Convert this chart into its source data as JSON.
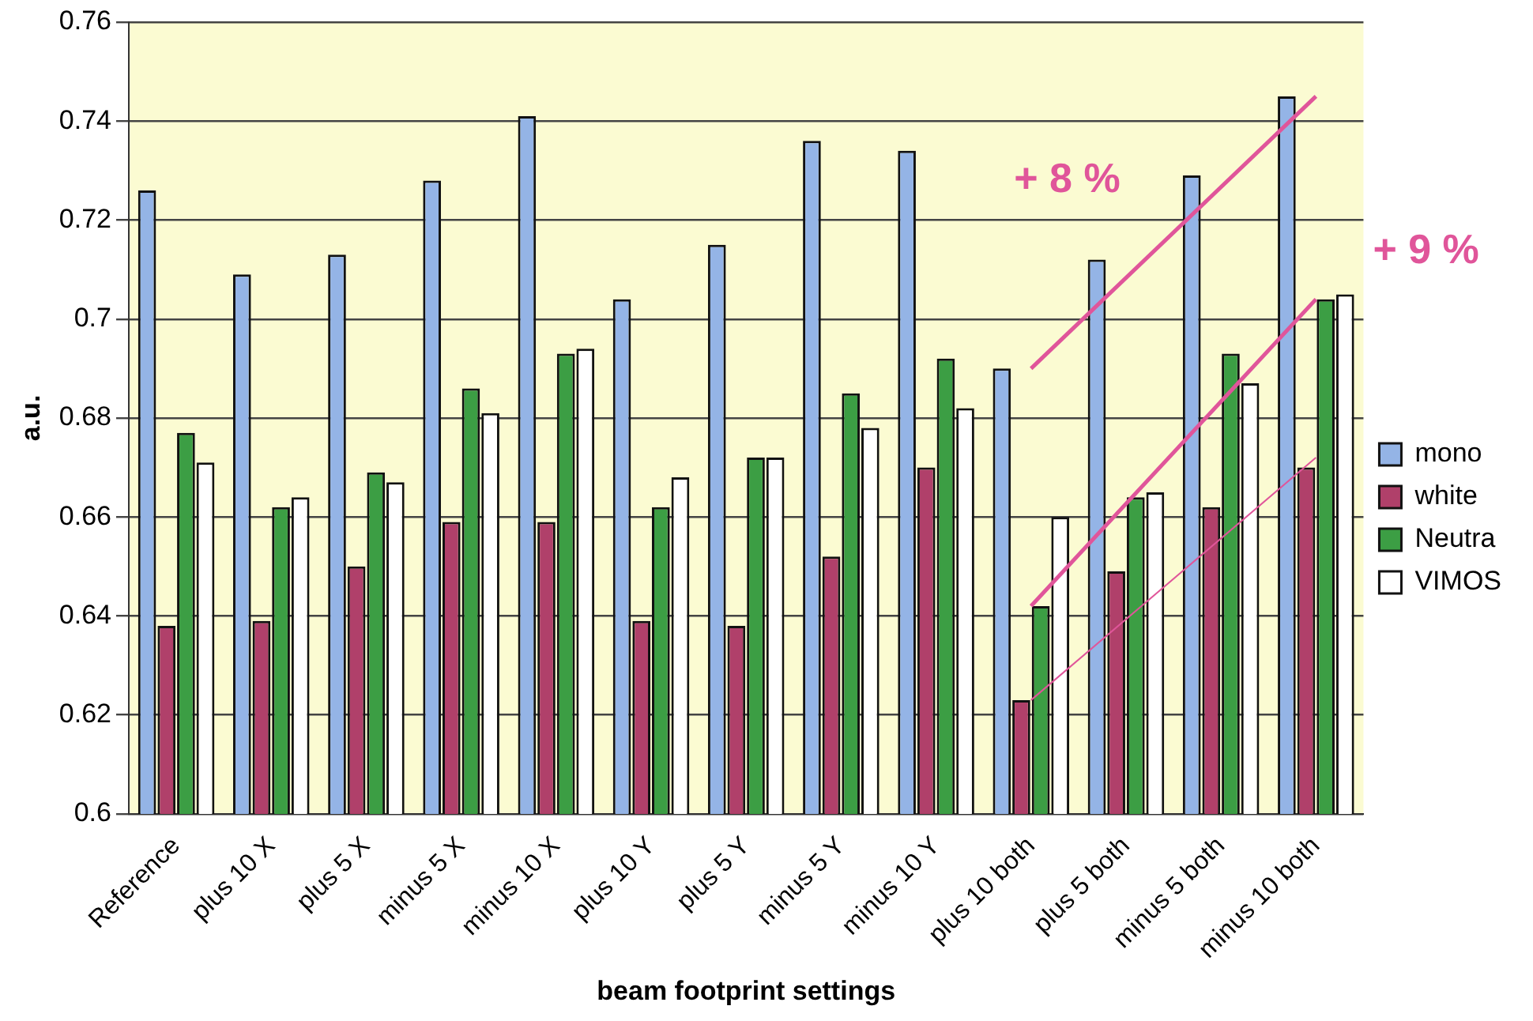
{
  "chart_data": {
    "type": "bar",
    "xlabel": "beam footprint settings",
    "ylabel": "a.u.",
    "categories": [
      "Reference",
      "plus 10 X",
      "plus 5 X",
      "minus 5 X",
      "minus 10 X",
      "plus 10 Y",
      "plus 5 Y",
      "minus 5 Y",
      "minus 10 Y",
      "plus 10 both",
      "plus 5 both",
      "minus 5 both",
      "minus 10 both"
    ],
    "series": [
      {
        "name": "mono",
        "color": "#94b4e6",
        "values": [
          0.726,
          0.709,
          0.713,
          0.728,
          0.741,
          0.704,
          0.715,
          0.736,
          0.734,
          0.69,
          0.712,
          0.729,
          0.745
        ]
      },
      {
        "name": "white",
        "color": "#b0406a",
        "values": [
          0.638,
          0.639,
          0.65,
          0.659,
          0.659,
          0.639,
          0.638,
          0.652,
          0.67,
          0.623,
          0.649,
          0.662,
          0.67
        ]
      },
      {
        "name": "Neutra",
        "color": "#3c9e44",
        "values": [
          0.677,
          0.662,
          0.669,
          0.686,
          0.693,
          0.662,
          0.672,
          0.685,
          0.692,
          0.642,
          0.664,
          0.693,
          0.704
        ]
      },
      {
        "name": "VIMOS",
        "color": "#ffffff",
        "values": [
          0.671,
          0.664,
          0.667,
          0.681,
          0.694,
          0.668,
          0.672,
          0.678,
          0.682,
          0.66,
          0.665,
          0.687,
          0.705
        ]
      },
      {
        "type": "line",
        "color": "#e0559a",
        "x": [
          "plus 10 both",
          "minus 10 both"
        ],
        "values": [
          0.69,
          0.745
        ]
      },
      {
        "type": "line",
        "color": "#e0559a",
        "x": [
          "plus 10 both",
          "minus 10 both"
        ],
        "values": [
          0.642,
          0.704
        ]
      },
      {
        "type": "line",
        "color": "#e0559a",
        "x": [
          "plus 10 both",
          "minus 10 both"
        ],
        "values": [
          0.623,
          0.672
        ]
      }
    ],
    "ylim": [
      0.6,
      0.76
    ],
    "yticks": [
      0.6,
      0.62,
      0.64,
      0.66,
      0.68,
      0.7,
      0.72,
      0.74,
      0.76
    ],
    "grid": "y",
    "legend": "right",
    "marker": "none",
    "annotations": [
      "+ 8 %",
      "+ 9 %"
    ]
  }
}
